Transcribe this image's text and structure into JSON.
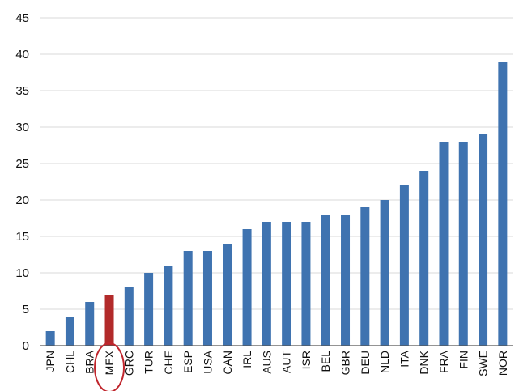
{
  "chart_data": {
    "type": "bar",
    "title": "",
    "xlabel": "",
    "ylabel": "",
    "ylim": [
      0,
      45
    ],
    "yticks": [
      0,
      5,
      10,
      15,
      20,
      25,
      30,
      35,
      40,
      45
    ],
    "grid": true,
    "categories": [
      "JPN",
      "CHL",
      "BRA",
      "MEX",
      "GRC",
      "TUR",
      "CHE",
      "ESP",
      "USA",
      "CAN",
      "IRL",
      "AUS",
      "AUT",
      "ISR",
      "BEL",
      "GBR",
      "DEU",
      "NLD",
      "ITA",
      "DNK",
      "FRA",
      "FIN",
      "SWE",
      "NOR"
    ],
    "values": [
      2,
      4,
      6,
      7,
      8,
      10,
      11,
      13,
      13,
      14,
      16,
      17,
      17,
      17,
      18,
      18,
      19,
      20,
      22,
      24,
      28,
      28,
      29,
      39
    ],
    "highlight": "MEX",
    "colors": {
      "bar": "#3f73b0",
      "highlight_bar": "#b22a2a",
      "highlight_circle": "#c0262d"
    }
  }
}
